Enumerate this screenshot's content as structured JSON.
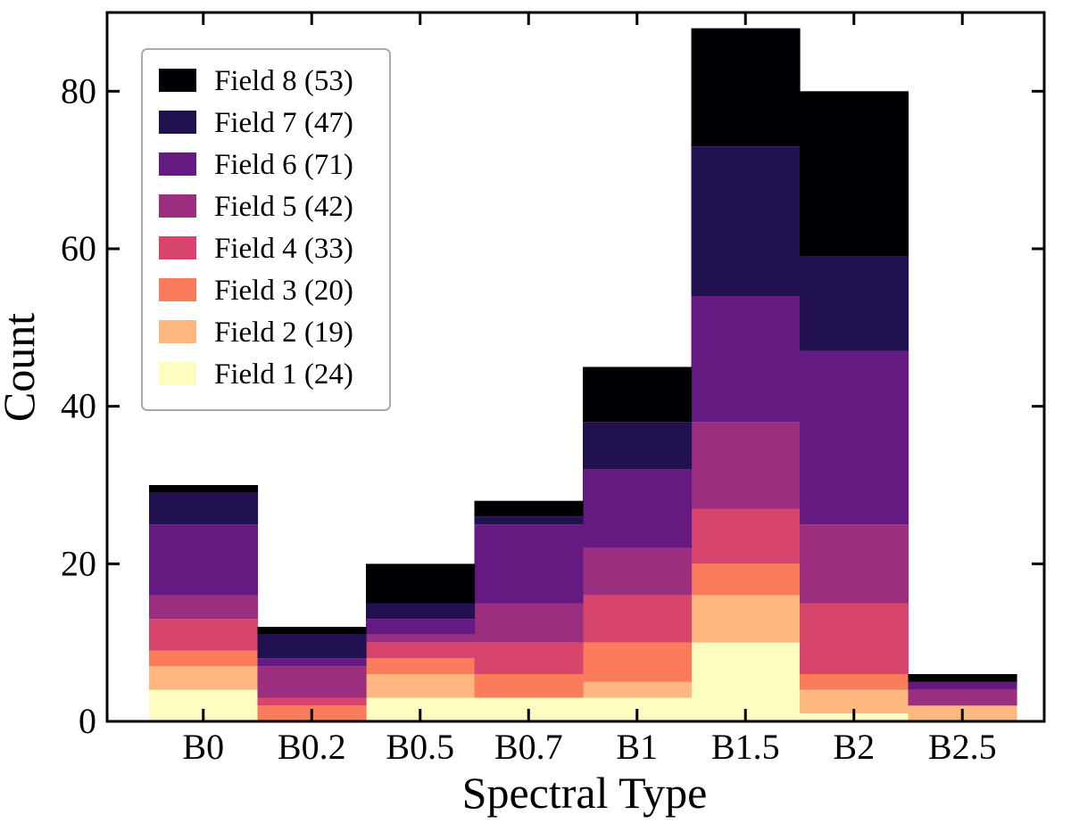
{
  "chart_data": {
    "type": "bar",
    "stacked": true,
    "xlabel": "Spectral Type",
    "ylabel": "Count",
    "ylim": [
      0,
      90
    ],
    "yticks": [
      0,
      20,
      40,
      60,
      80
    ],
    "grid": false,
    "legend_position": "top-left",
    "categories": [
      "B0",
      "B0.2",
      "B0.5",
      "B0.7",
      "B1",
      "B1.5",
      "B2",
      "B2.5"
    ],
    "series": [
      {
        "name": "Field 1 (24)",
        "color": "#fcfdbf",
        "values": [
          4,
          0,
          3,
          3,
          3,
          10,
          1,
          0
        ]
      },
      {
        "name": "Field 2 (19)",
        "color": "#feb77e",
        "values": [
          3,
          0,
          3,
          0,
          2,
          6,
          3,
          2
        ]
      },
      {
        "name": "Field 3 (20)",
        "color": "#fb7c5c",
        "values": [
          2,
          2,
          2,
          3,
          5,
          4,
          2,
          0
        ]
      },
      {
        "name": "Field 4 (33)",
        "color": "#d8456c",
        "values": [
          4,
          1,
          2,
          4,
          6,
          7,
          9,
          0
        ]
      },
      {
        "name": "Field 5 (42)",
        "color": "#9c2e7f",
        "values": [
          3,
          4,
          1,
          5,
          6,
          11,
          10,
          2
        ]
      },
      {
        "name": "Field 6 (71)",
        "color": "#641a80",
        "values": [
          9,
          1,
          2,
          10,
          10,
          16,
          22,
          1
        ]
      },
      {
        "name": "Field 7 (47)",
        "color": "#221150",
        "values": [
          4,
          3,
          2,
          1,
          6,
          19,
          12,
          0
        ]
      },
      {
        "name": "Field 8 (53)",
        "color": "#000004",
        "values": [
          1,
          1,
          5,
          2,
          7,
          15,
          21,
          1
        ]
      }
    ]
  }
}
